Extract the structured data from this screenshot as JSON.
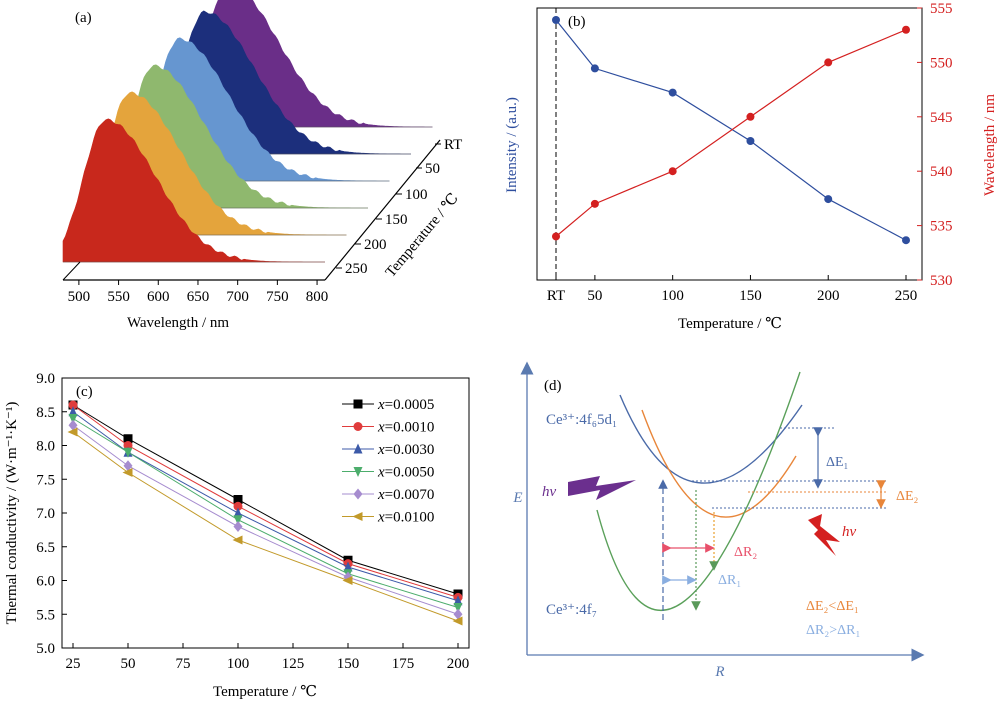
{
  "panel_a": {
    "label": "(a)",
    "xlabel": "Wavelength / nm",
    "xticks": [
      "500",
      "550",
      "600",
      "650",
      "700",
      "750",
      "800"
    ],
    "depth_label": "Temperature / ℃",
    "depth_ticks": [
      "RT",
      "50",
      "100",
      "150",
      "200",
      "250"
    ]
  },
  "panel_b": {
    "label": "(b)",
    "xlabel": "Temperature / ℃",
    "ylabel_left": "Intensity / (a.u.)",
    "ylabel_right": "Wavelength / nm",
    "xticks": [
      "RT",
      "50",
      "100",
      "150",
      "200",
      "250"
    ],
    "yticks_right": [
      "530",
      "535",
      "540",
      "545",
      "550",
      "555"
    ],
    "colors": {
      "intensity": "#2e4e9e",
      "wavelength": "#d42020"
    }
  },
  "panel_c": {
    "label": "(c)",
    "xlabel": "Temperature / ℃",
    "ylabel": "Thermal conductivity / (W·m⁻¹·K⁻¹)",
    "xticks": [
      "25",
      "50",
      "75",
      "100",
      "125",
      "150",
      "175",
      "200"
    ],
    "yticks": [
      "5.0",
      "5.5",
      "6.0",
      "6.5",
      "7.0",
      "7.5",
      "8.0",
      "8.5",
      "9.0"
    ],
    "legend_prefix": "x"
  },
  "panel_d": {
    "label": "(d)",
    "axis_e": "E",
    "axis_r": "R",
    "excited_state": "Ce³⁺:4f₆5d₁",
    "ground_state": "Ce³⁺:4f₇",
    "hv_left": "hν",
    "hv_right": "hν",
    "dE1": "ΔE₁",
    "dE2": "ΔE₂",
    "dR1": "ΔR₁",
    "dR2": "ΔR₂",
    "relation_e": "ΔE₂<ΔE₁",
    "relation_r": "ΔR₂>ΔR₁"
  },
  "chart_data": [
    {
      "type": "area",
      "panel": "a",
      "xlim": [
        480,
        810
      ],
      "x_axis": "Wavelength / nm",
      "series": [
        {
          "name": "RT",
          "peak_nm": 534,
          "color": "#c8281c"
        },
        {
          "name": "50",
          "peak_nm": 537,
          "color": "#e4a43c"
        },
        {
          "name": "100",
          "peak_nm": 540,
          "color": "#8fb86e"
        },
        {
          "name": "150",
          "peak_nm": 545,
          "color": "#6696d0"
        },
        {
          "name": "200",
          "peak_nm": 550,
          "color": "#1c2f7c"
        },
        {
          "name": "250",
          "peak_nm": 553,
          "color": "#6a2e88"
        }
      ]
    },
    {
      "type": "line",
      "panel": "b",
      "categories": [
        "RT",
        "50",
        "100",
        "150",
        "200",
        "250"
      ],
      "x": [
        25,
        50,
        100,
        150,
        200,
        250
      ],
      "series": [
        {
          "name": "Intensity",
          "axis": "left",
          "values": [
            1.0,
            0.8,
            0.7,
            0.5,
            0.26,
            0.09
          ]
        },
        {
          "name": "Wavelength",
          "axis": "right",
          "values": [
            534,
            537,
            540,
            545,
            550,
            553
          ]
        }
      ],
      "ylim_right": [
        530,
        555
      ]
    },
    {
      "type": "line",
      "panel": "c",
      "x": [
        25,
        50,
        100,
        150,
        200
      ],
      "xlim": [
        20,
        205
      ],
      "ylim": [
        5.0,
        9.0
      ],
      "series": [
        {
          "name": "0.0005",
          "marker": "square",
          "color": "#000000",
          "values": [
            8.6,
            8.1,
            7.2,
            6.3,
            5.8
          ]
        },
        {
          "name": "0.0010",
          "marker": "circle",
          "color": "#e03c3c",
          "values": [
            8.6,
            8.0,
            7.1,
            6.25,
            5.75
          ]
        },
        {
          "name": "0.0030",
          "marker": "triangle-up",
          "color": "#3c5aa8",
          "values": [
            8.5,
            7.9,
            7.0,
            6.2,
            5.7
          ]
        },
        {
          "name": "0.0050",
          "marker": "triangle-down",
          "color": "#4cad6c",
          "values": [
            8.4,
            7.9,
            6.9,
            6.1,
            5.6
          ]
        },
        {
          "name": "0.0070",
          "marker": "diamond",
          "color": "#a68ccf",
          "values": [
            8.3,
            7.7,
            6.8,
            6.05,
            5.5
          ]
        },
        {
          "name": "0.0100",
          "marker": "triangle-left",
          "color": "#c29a2a",
          "values": [
            8.2,
            7.6,
            6.6,
            6.0,
            5.4
          ]
        }
      ]
    }
  ]
}
